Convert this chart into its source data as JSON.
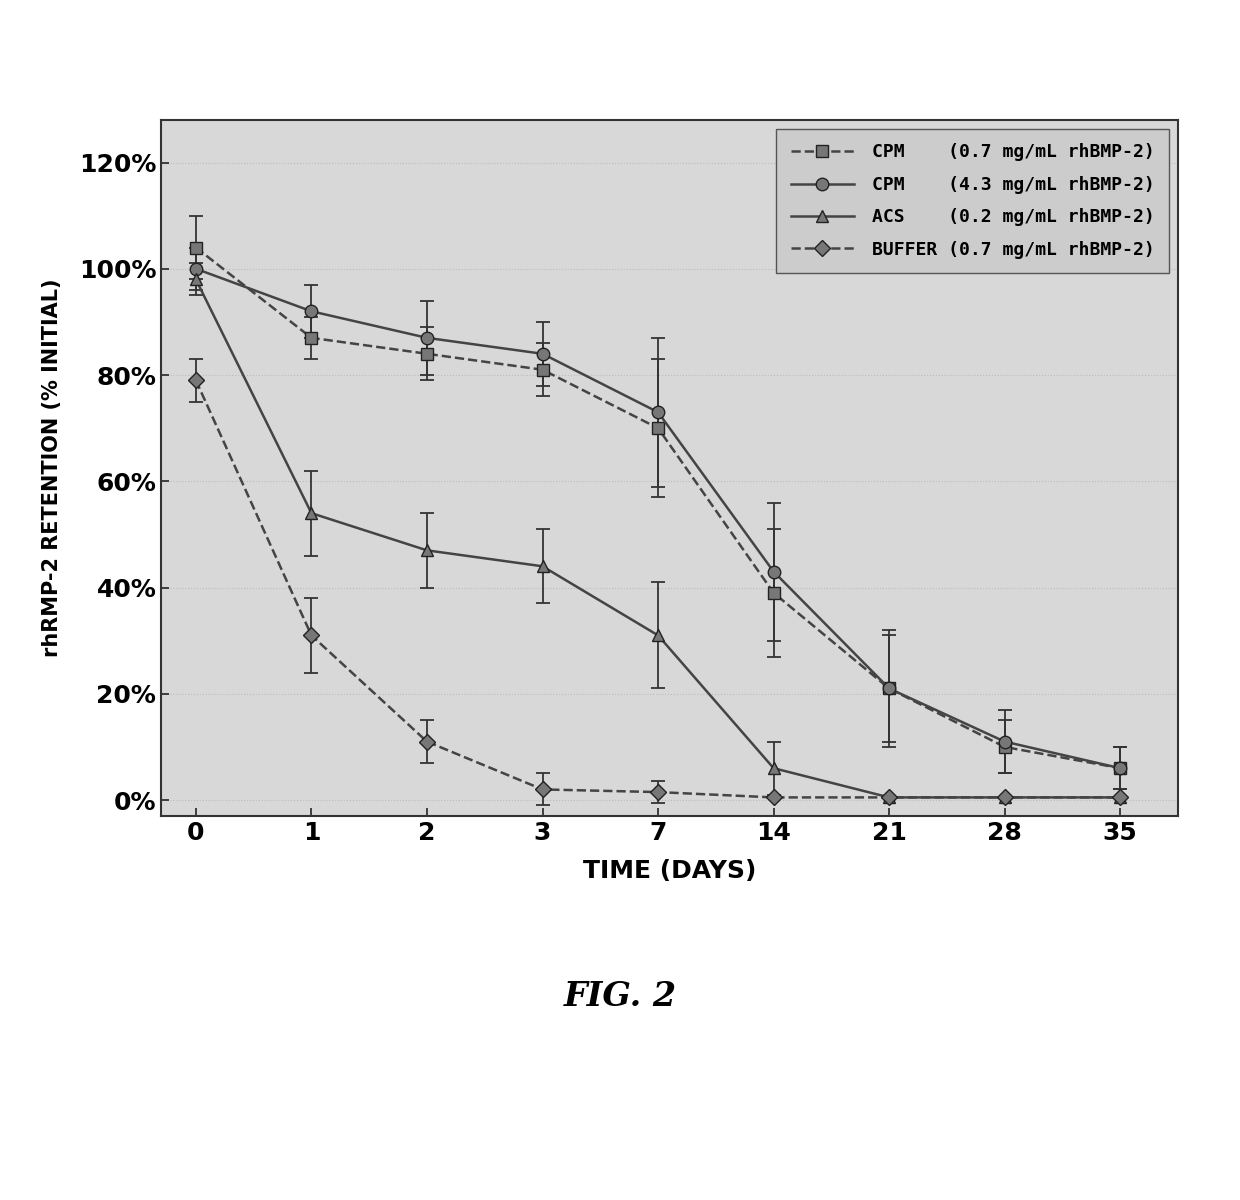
{
  "series": [
    {
      "label": "CPM    (0.7 mg/mL rhBMP-2)",
      "x_idx": [
        0,
        1,
        2,
        3,
        4,
        5,
        6,
        7,
        8
      ],
      "x_vals": [
        0,
        1,
        2,
        3,
        7,
        14,
        21,
        28,
        35
      ],
      "y": [
        1.04,
        0.87,
        0.84,
        0.81,
        0.7,
        0.39,
        0.21,
        0.1,
        0.06
      ],
      "yerr": [
        0.06,
        0.04,
        0.05,
        0.05,
        0.13,
        0.12,
        0.1,
        0.05,
        0.04
      ],
      "color": "#444444",
      "linestyle": "--",
      "marker": "s",
      "markersize": 9,
      "linewidth": 1.8
    },
    {
      "label": "CPM    (4.3 mg/mL rhBMP-2)",
      "x_idx": [
        0,
        1,
        2,
        3,
        4,
        5,
        6,
        7,
        8
      ],
      "x_vals": [
        0,
        1,
        2,
        3,
        7,
        14,
        21,
        28,
        35
      ],
      "y": [
        1.0,
        0.92,
        0.87,
        0.84,
        0.73,
        0.43,
        0.21,
        0.11,
        0.06
      ],
      "yerr": [
        0.04,
        0.05,
        0.07,
        0.06,
        0.14,
        0.13,
        0.11,
        0.06,
        0.04
      ],
      "color": "#444444",
      "linestyle": "-",
      "marker": "o",
      "markersize": 9,
      "linewidth": 1.8
    },
    {
      "label": "ACS    (0.2 mg/mL rhBMP-2)",
      "x_idx": [
        0,
        1,
        2,
        3,
        4,
        5,
        6,
        7,
        8
      ],
      "x_vals": [
        0,
        1,
        2,
        3,
        7,
        14,
        21,
        28,
        35
      ],
      "y": [
        0.98,
        0.54,
        0.47,
        0.44,
        0.31,
        0.06,
        0.005,
        0.005,
        0.005
      ],
      "yerr": [
        0.03,
        0.08,
        0.07,
        0.07,
        0.1,
        0.05,
        0.0,
        0.0,
        0.0
      ],
      "color": "#444444",
      "linestyle": "-",
      "marker": "^",
      "markersize": 9,
      "linewidth": 1.8
    },
    {
      "label": "BUFFER (0.7 mg/mL rhBMP-2)",
      "x_idx": [
        0,
        1,
        2,
        3,
        4,
        5,
        6,
        7,
        8
      ],
      "x_vals": [
        0,
        1,
        2,
        3,
        7,
        14,
        21,
        28,
        35
      ],
      "y": [
        0.79,
        0.31,
        0.11,
        0.02,
        0.015,
        0.005,
        0.005,
        0.005,
        0.005
      ],
      "yerr": [
        0.04,
        0.07,
        0.04,
        0.03,
        0.02,
        0.0,
        0.0,
        0.0,
        0.0
      ],
      "color": "#444444",
      "linestyle": "--",
      "marker": "D",
      "markersize": 8,
      "linewidth": 1.8
    }
  ],
  "xlabel": "TIME (DAYS)",
  "ylabel": "rhRMP-2 RETENTION (% INITIAL)",
  "fig_label": "FIG. 2",
  "xtick_positions": [
    0,
    1,
    2,
    3,
    4,
    5,
    6,
    7,
    8
  ],
  "xticklabels": [
    "0",
    "1",
    "2",
    "3",
    "7",
    "14",
    "21",
    "28",
    "35"
  ],
  "yticks": [
    0.0,
    0.2,
    0.4,
    0.6,
    0.8,
    1.0,
    1.2
  ],
  "yticklabels": [
    "0%",
    "20%",
    "40%",
    "60%",
    "80%",
    "100%",
    "120%"
  ],
  "ylim": [
    -0.03,
    1.28
  ],
  "xlim": [
    -0.3,
    8.5
  ],
  "plot_bg": "#d8d8d8",
  "fig_bg": "#ffffff",
  "grid_color": "#bbbbbb",
  "legend_loc": "upper right"
}
